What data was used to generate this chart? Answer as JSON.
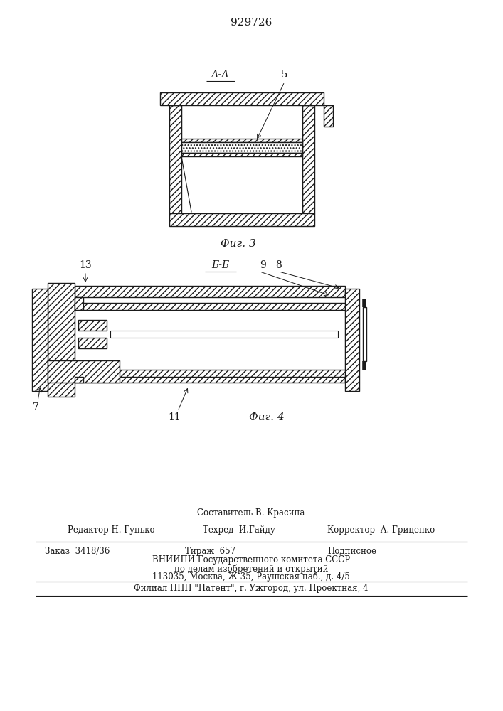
{
  "patent_number": "929726",
  "fig3_label": "Фиг. 3",
  "fig4_label": "Фиг. 4",
  "section_aa": "А-А",
  "section_bb": "Б-Б",
  "label_5": "5",
  "label_7": "7",
  "label_8": "8",
  "label_9": "9",
  "label_11": "11",
  "label_13": "13",
  "line_color": "#1a1a1a",
  "footer_line1": "Составитель В. Красина",
  "footer_line2_left": "Редактор Н. Гунько",
  "footer_line2_mid": "Техред  И.Гайду",
  "footer_line2_right": "Корректор  А. Гриценко",
  "footer_line3_left": "Заказ  3418/36",
  "footer_line3_mid": "Тираж  657",
  "footer_line3_right": "Подписное",
  "footer_line4": "ВНИИПИ Государственного комитета СССР",
  "footer_line5": "по делам изобретений и открытий",
  "footer_line6": "113035, Москва, Ж-35, Раушская наб., д. 4/5",
  "footer_line7": "Филиал ППП \"Патент\", г. Ужгород, ул. Проектная, 4"
}
